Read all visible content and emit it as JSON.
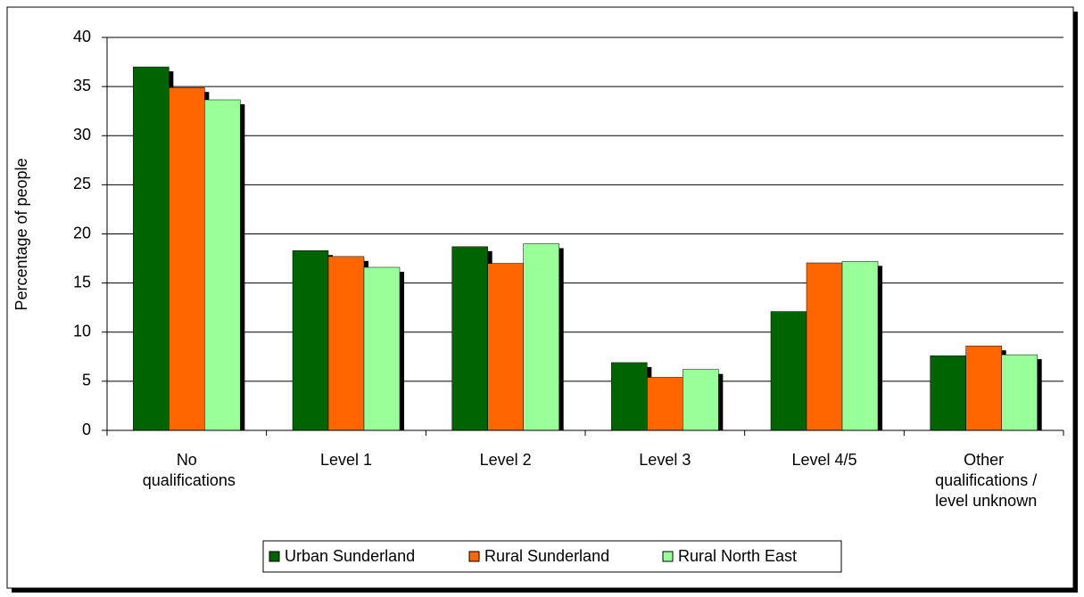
{
  "chart_data": {
    "type": "bar",
    "y_label": "Percentage of people",
    "categories": [
      "No qualifications",
      "Level 1",
      "Level 2",
      "Level 3",
      "Level 4/5",
      "Other qualifications / level unknown"
    ],
    "series": [
      {
        "name": "Urban Sunderland",
        "color": "#006400",
        "values": [
          37.0,
          18.3,
          18.7,
          6.9,
          12.1,
          7.6
        ]
      },
      {
        "name": "Rural Sunderland",
        "color": "#ff6600",
        "values": [
          34.9,
          17.7,
          17.0,
          5.4,
          17.05,
          8.6
        ]
      },
      {
        "name": "Rural North East",
        "color": "#99ff99",
        "values": [
          33.65,
          16.6,
          19.0,
          6.2,
          17.2,
          7.7
        ]
      }
    ],
    "ylim": [
      0,
      40
    ],
    "yticks": [
      0,
      5,
      10,
      15,
      20,
      25,
      30,
      35,
      40
    ],
    "grid": true,
    "legend": "bottom"
  }
}
